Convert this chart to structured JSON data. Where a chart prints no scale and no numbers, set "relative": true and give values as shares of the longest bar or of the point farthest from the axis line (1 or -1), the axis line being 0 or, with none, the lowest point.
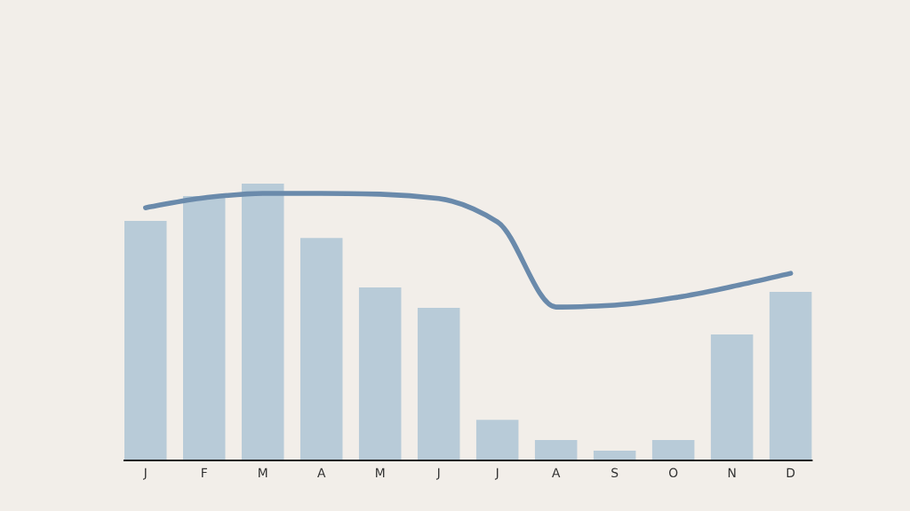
{
  "chart_data": {
    "type": "bar",
    "relative": true,
    "tick_labels": "x",
    "grid": false,
    "legend": false,
    "categories": [
      "J",
      "F",
      "M",
      "A",
      "M",
      "J",
      "J",
      "A",
      "S",
      "O",
      "N",
      "D"
    ],
    "series": [
      {
        "color": "#b8cbd8",
        "values": [
          0.865,
          0.955,
          1,
          0.804,
          0.625,
          0.551,
          0.147,
          0.074,
          0.035,
          0.074,
          0.455,
          0.609
        ]
      },
      {
        "type": "line",
        "color": "#6a8aab",
        "marker": "none",
        "line_style": "solid",
        "values": [
          0.913,
          0.949,
          0.965,
          0.965,
          0.962,
          0.946,
          0.862,
          0.554,
          0.561,
          0.587,
          0.628,
          0.676
        ]
      }
    ]
  }
}
